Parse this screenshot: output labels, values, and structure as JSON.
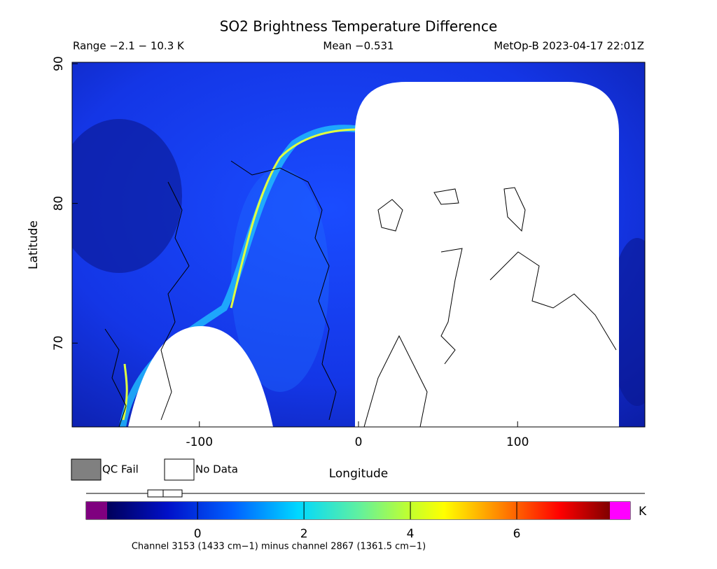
{
  "title": "SO2 Brightness Temperature Difference",
  "range_label": "Range −2.1 − 10.3 K",
  "mean_label": "Mean −0.531",
  "satellite_label": "MetOp-B 2023-04-17 22:01Z",
  "map": {
    "xlabel": "Longitude",
    "ylabel": "Latitude",
    "xlim": [
      -180,
      180
    ],
    "ylim": [
      64,
      90
    ],
    "xticks": [
      -100,
      0,
      100
    ],
    "yticks": [
      70,
      80,
      90
    ]
  },
  "legend": [
    {
      "name": "QC Fail",
      "color": "#808080"
    },
    {
      "name": "No Data",
      "color": "#ffffff"
    }
  ],
  "colorbar": {
    "lim": [
      -1.7,
      7.75
    ],
    "ticks": [
      0,
      2,
      4,
      6
    ],
    "unit": "K",
    "under_color": "#7f007f",
    "over_color": "#ff00ff"
  },
  "footnote": "Channel 3153 (1433 cm−1) minus channel 2867 (1361.5 cm−1)"
}
